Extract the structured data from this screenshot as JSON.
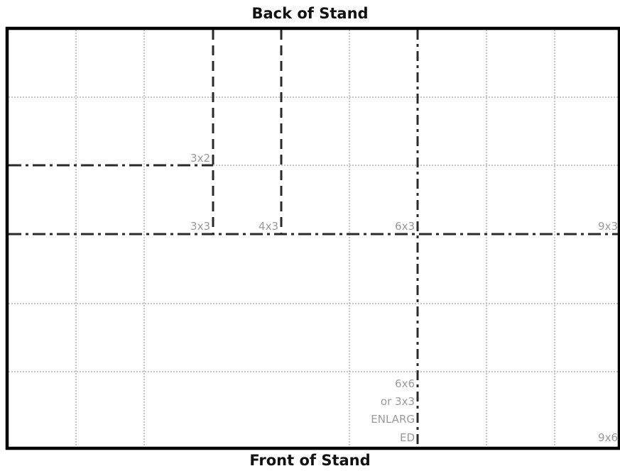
{
  "back_label": "Back of Stand",
  "front_label": "Front of Stand",
  "zone_labels": {
    "z3x2": "3x2",
    "z3x3": "3x3",
    "z4x3": "4x3",
    "z6x3": "6x3",
    "z9x3": "9x3",
    "z6x6_line1": "6x6",
    "z6x6_line2": "or 3x3",
    "z6x6_line3": "ENLARG",
    "z6x6_line4": "ED",
    "z9x6": "9x6"
  },
  "colors": {
    "outline": "#000000",
    "grid": "#b5b5b5",
    "divider": "#2a2a2a",
    "label": "#9a9a9a"
  }
}
